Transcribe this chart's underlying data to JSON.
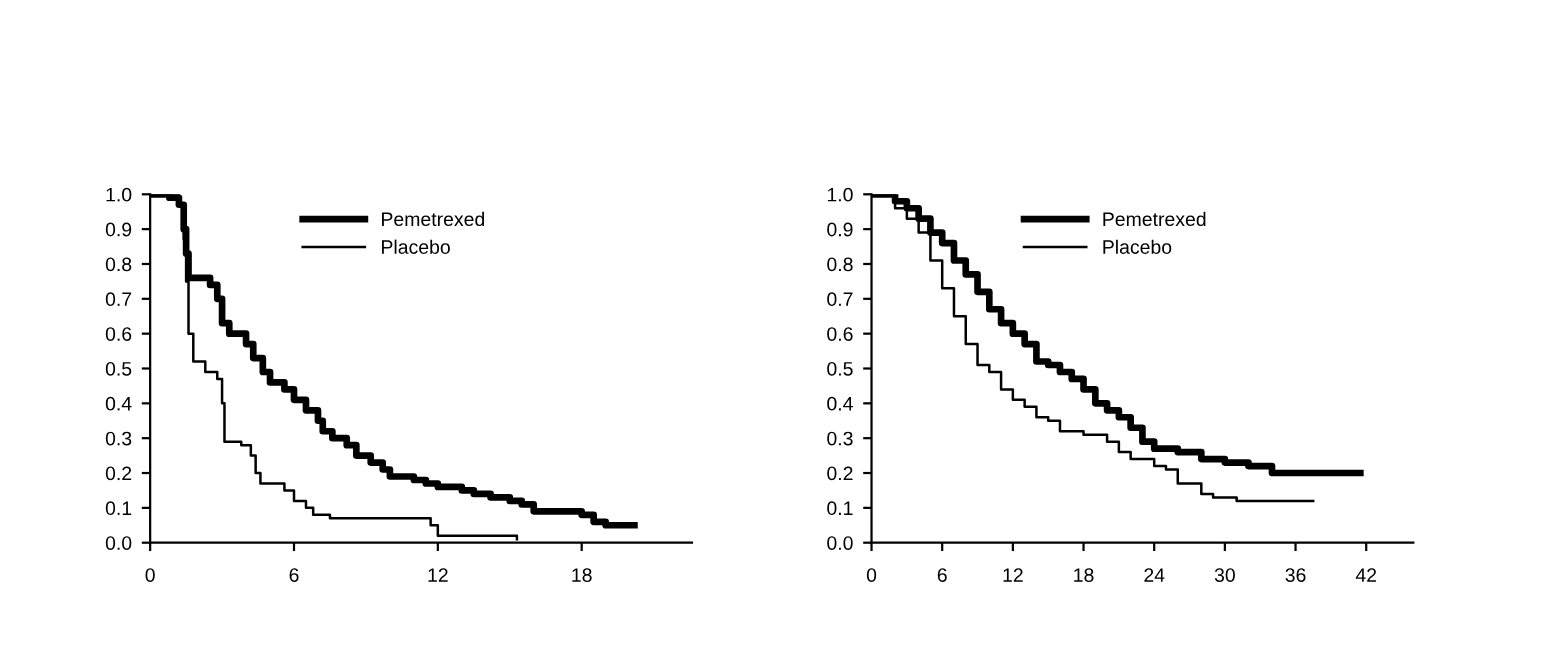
{
  "chart_data": [
    {
      "type": "step",
      "xlim": [
        0,
        22.6
      ],
      "xticks": [
        0,
        6,
        12,
        18
      ],
      "ylim": [
        0,
        1.0
      ],
      "yticks": [
        {
          "value": 0,
          "label": "0.0"
        },
        {
          "value": 0.1,
          "label": "0.1"
        },
        {
          "value": 0.2,
          "label": "0.2"
        },
        {
          "value": 0.3,
          "label": "0.3"
        },
        {
          "value": 0.4,
          "label": "0.4"
        },
        {
          "value": 0.5,
          "label": "0.5"
        },
        {
          "value": 0.6,
          "label": "0.6"
        },
        {
          "value": 0.7,
          "label": "0.7"
        },
        {
          "value": 0.8,
          "label": "0.8"
        },
        {
          "value": 0.9,
          "label": "0.9"
        },
        {
          "value": 1.0,
          "label": "1.0"
        }
      ],
      "legend": "top",
      "grid": false,
      "series": [
        {
          "name": "Pemetrexed",
          "color": "#000000",
          "x": [
            0,
            0.8,
            1.2,
            1.4,
            1.5,
            1.6,
            2.5,
            2.8,
            3.0,
            3.3,
            4.0,
            4.3,
            4.7,
            5.0,
            5.6,
            6.0,
            6.5,
            7.0,
            7.2,
            7.6,
            8.2,
            8.6,
            9.2,
            9.7,
            10.0,
            11.0,
            11.5,
            12.0,
            13.0,
            13.5,
            14.2,
            15.0,
            15.5,
            16.0,
            18.0,
            18.5,
            19.0,
            20.2
          ],
          "values": [
            1.0,
            0.99,
            0.97,
            0.9,
            0.83,
            0.76,
            0.74,
            0.7,
            0.63,
            0.6,
            0.57,
            0.53,
            0.49,
            0.46,
            0.44,
            0.41,
            0.38,
            0.35,
            0.32,
            0.3,
            0.28,
            0.25,
            0.23,
            0.21,
            0.19,
            0.18,
            0.17,
            0.16,
            0.15,
            0.14,
            0.13,
            0.12,
            0.11,
            0.09,
            0.08,
            0.06,
            0.05,
            0.05
          ]
        },
        {
          "name": "Placebo",
          "color": "#000000",
          "x": [
            0,
            1.2,
            1.4,
            1.5,
            1.6,
            1.8,
            2.3,
            2.8,
            3.0,
            3.1,
            3.8,
            4.2,
            4.4,
            4.6,
            5.6,
            6.0,
            6.5,
            6.8,
            7.5,
            11.7,
            12.0,
            15.3
          ],
          "values": [
            1.0,
            0.97,
            0.87,
            0.75,
            0.6,
            0.52,
            0.49,
            0.47,
            0.4,
            0.29,
            0.28,
            0.25,
            0.2,
            0.17,
            0.15,
            0.12,
            0.1,
            0.08,
            0.07,
            0.05,
            0.02,
            0.01
          ]
        }
      ]
    },
    {
      "type": "step",
      "xlim": [
        0,
        46
      ],
      "xticks": [
        0,
        6,
        12,
        18,
        24,
        30,
        36,
        42
      ],
      "ylim": [
        0,
        1.0
      ],
      "yticks": [
        {
          "value": 0,
          "label": "0.0"
        },
        {
          "value": 0.1,
          "label": "0.1"
        },
        {
          "value": 0.2,
          "label": "0.2"
        },
        {
          "value": 0.3,
          "label": "0.3"
        },
        {
          "value": 0.4,
          "label": "0.4"
        },
        {
          "value": 0.5,
          "label": "0.5"
        },
        {
          "value": 0.6,
          "label": "0.6"
        },
        {
          "value": 0.7,
          "label": "0.7"
        },
        {
          "value": 0.8,
          "label": "0.8"
        },
        {
          "value": 0.9,
          "label": "0.9"
        },
        {
          "value": 1.0,
          "label": "1.0"
        }
      ],
      "legend": "top",
      "grid": false,
      "series": [
        {
          "name": "Pemetrexed",
          "color": "#000000",
          "x": [
            0,
            1,
            2,
            3,
            4,
            5,
            6,
            7,
            8,
            9,
            10,
            11,
            12,
            13,
            14,
            15,
            16,
            17,
            18,
            19,
            20,
            21,
            22,
            23,
            24,
            26,
            28,
            30,
            32,
            34,
            41.5
          ],
          "values": [
            1.0,
            1.0,
            0.98,
            0.96,
            0.93,
            0.89,
            0.86,
            0.81,
            0.77,
            0.72,
            0.67,
            0.63,
            0.6,
            0.57,
            0.52,
            0.51,
            0.49,
            0.47,
            0.44,
            0.4,
            0.38,
            0.36,
            0.33,
            0.29,
            0.27,
            0.26,
            0.24,
            0.23,
            0.22,
            0.2,
            0.2
          ]
        },
        {
          "name": "Placebo",
          "color": "#000000",
          "x": [
            0,
            1,
            2,
            3,
            4,
            5,
            6,
            7,
            8,
            9,
            10,
            11,
            12,
            13,
            14,
            15,
            16,
            18,
            20,
            21,
            22,
            24,
            25,
            26,
            28,
            29,
            31,
            37.5
          ],
          "values": [
            1.0,
            1.0,
            0.96,
            0.93,
            0.89,
            0.81,
            0.73,
            0.65,
            0.57,
            0.51,
            0.49,
            0.44,
            0.41,
            0.39,
            0.36,
            0.35,
            0.32,
            0.31,
            0.29,
            0.26,
            0.24,
            0.22,
            0.21,
            0.17,
            0.14,
            0.13,
            0.12,
            0.12
          ]
        }
      ]
    }
  ]
}
